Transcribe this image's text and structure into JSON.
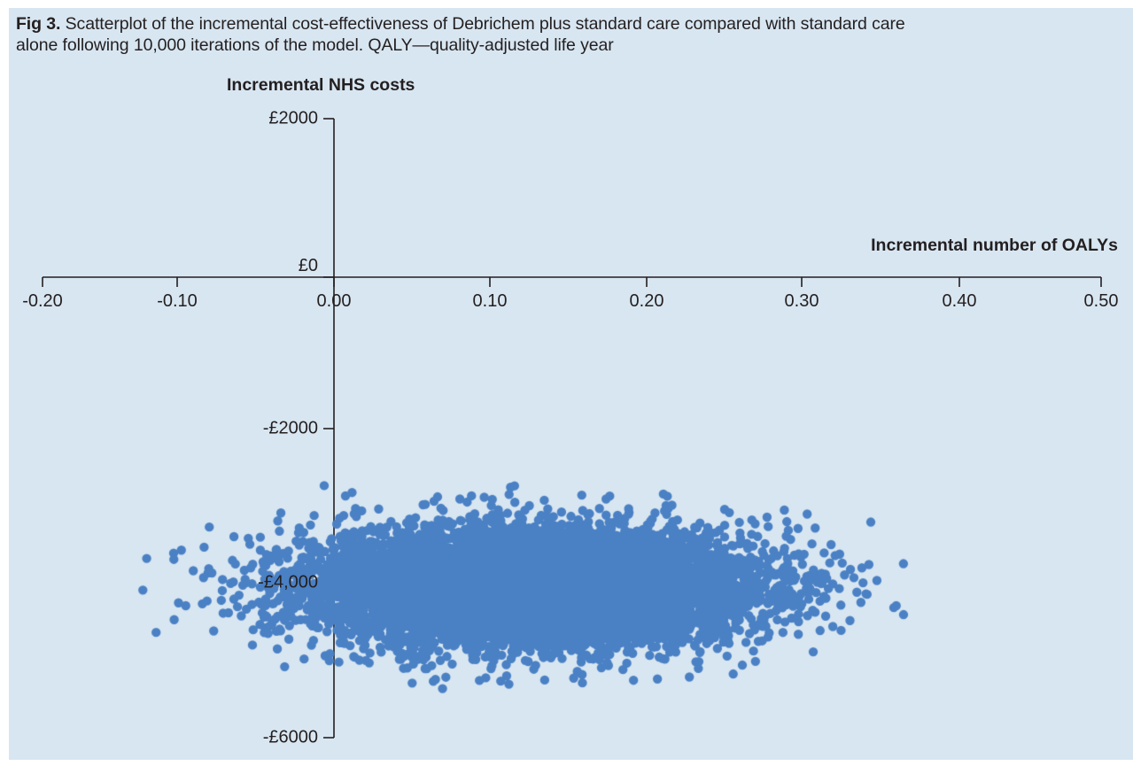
{
  "caption": {
    "label": "Fig 3.",
    "line1": " Scatterplot of the incremental cost-effectiveness of Debrichem plus standard care compared with standard care",
    "line2": "alone following 10,000 iterations of the model. QALY—quality-adjusted life year"
  },
  "chart_data": {
    "type": "scatter",
    "title": "Fig 3. Scatterplot of the incremental cost-effectiveness of Debrichem plus standard care compared with standard care alone following 10,000 iterations of the model. QALY—quality-adjusted life year",
    "xlabel": "Incremental number of OALYs",
    "ylabel": "Incremental NHS costs",
    "xlim": [
      -0.2,
      0.5
    ],
    "ylim": [
      -6000,
      2000
    ],
    "grid": false,
    "legend": null,
    "x_ticks": [
      {
        "value": -0.2,
        "label": "-0.20"
      },
      {
        "value": -0.1,
        "label": "-0.10"
      },
      {
        "value": 0.0,
        "label": "0.00"
      },
      {
        "value": 0.1,
        "label": "0.10"
      },
      {
        "value": 0.2,
        "label": "0.20"
      },
      {
        "value": 0.3,
        "label": "0.30"
      },
      {
        "value": 0.4,
        "label": "0.40"
      },
      {
        "value": 0.5,
        "label": "0.50"
      }
    ],
    "y_ticks": [
      {
        "value": 2000,
        "label": "£2000"
      },
      {
        "value": 0,
        "label": "£0"
      },
      {
        "value": -2000,
        "label": "-£2000"
      },
      {
        "value": -4000,
        "label": "-£4,000"
      },
      {
        "value": -6000,
        "label": "-£6000"
      }
    ],
    "points": {
      "n": 10000,
      "distribution": "bivariate_normal",
      "mean_qaly": 0.125,
      "sd_qaly": 0.07,
      "mean_cost": -4050,
      "sd_cost": 370,
      "seed": 20,
      "approx_qaly_range": [
        -0.13,
        0.36
      ],
      "approx_cost_range": [
        -5300,
        -2850
      ]
    },
    "point_radius_px": 5.2,
    "colors": {
      "point": "#4a80c4",
      "axis": "#231f20",
      "text": "#231f20",
      "panel_background": "#d8e6f1"
    }
  }
}
